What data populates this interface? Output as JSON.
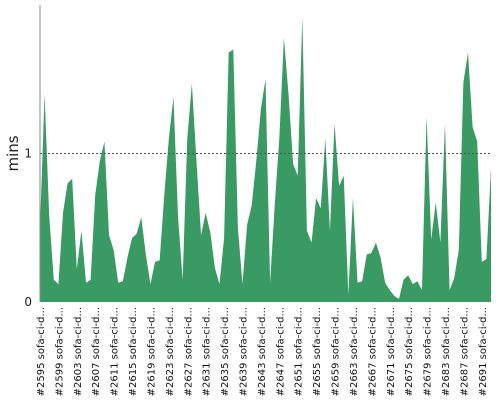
{
  "chart_data": {
    "type": "area",
    "title": "",
    "xlabel": "",
    "ylabel": "mins",
    "ylim": [
      0,
      2
    ],
    "yticks": [
      0,
      1
    ],
    "reference_line": 1,
    "fill_color": "#3a9a63",
    "grid": false,
    "x": [
      2595,
      2596,
      2597,
      2598,
      2599,
      2600,
      2601,
      2602,
      2603,
      2604,
      2605,
      2606,
      2607,
      2608,
      2609,
      2610,
      2611,
      2612,
      2613,
      2614,
      2615,
      2616,
      2617,
      2618,
      2619,
      2620,
      2621,
      2622,
      2623,
      2624,
      2625,
      2626,
      2627,
      2628,
      2629,
      2630,
      2631,
      2632,
      2633,
      2634,
      2635,
      2636,
      2637,
      2638,
      2639,
      2640,
      2641,
      2642,
      2643,
      2644,
      2645,
      2646,
      2647,
      2648,
      2649,
      2650,
      2651,
      2652,
      2653,
      2654,
      2655,
      2656,
      2657,
      2658,
      2659,
      2660,
      2661,
      2662,
      2663,
      2664,
      2665,
      2666,
      2667,
      2668,
      2669,
      2670,
      2671,
      2672,
      2673,
      2674,
      2675,
      2676,
      2677,
      2678,
      2679,
      2680,
      2681,
      2682,
      2683,
      2684,
      2685,
      2686,
      2687,
      2688,
      2689,
      2690,
      2691,
      2692,
      2693
    ],
    "values": [
      0.5,
      1.4,
      0.58,
      0.15,
      0.12,
      0.6,
      0.8,
      0.83,
      0.22,
      0.48,
      0.13,
      0.15,
      0.72,
      0.95,
      1.08,
      0.45,
      0.35,
      0.13,
      0.14,
      0.3,
      0.43,
      0.46,
      0.57,
      0.32,
      0.12,
      0.27,
      0.28,
      0.72,
      1.1,
      1.38,
      0.57,
      0.15,
      1.1,
      1.47,
      0.95,
      0.45,
      0.6,
      0.47,
      0.23,
      0.12,
      0.43,
      1.68,
      1.7,
      0.5,
      0.12,
      0.52,
      0.65,
      0.95,
      1.3,
      1.5,
      0.13,
      0.65,
      1.1,
      1.78,
      1.4,
      0.93,
      0.85,
      1.92,
      0.48,
      0.4,
      0.7,
      0.63,
      1.1,
      0.48,
      1.2,
      0.78,
      0.85,
      0.05,
      0.7,
      0.13,
      0.14,
      0.32,
      0.33,
      0.4,
      0.3,
      0.13,
      0.08,
      0.04,
      0.02,
      0.15,
      0.18,
      0.12,
      0.14,
      0.08,
      1.25,
      0.42,
      0.67,
      0.4,
      1.2,
      0.08,
      0.16,
      0.35,
      1.48,
      1.68,
      1.18,
      1.08,
      0.27,
      0.29,
      0.9
    ],
    "tick_labels": [
      "#2595 sofa-ci-d...",
      "#2599 sofa-ci-d...",
      "#2603 sofa-ci-d...",
      "#2607 sofa-ci-d...",
      "#2611 sofa-ci-d...",
      "#2615 sofa-ci-d...",
      "#2619 sofa-ci-d...",
      "#2623 sofa-ci-d...",
      "#2627 sofa-ci-d...",
      "#2631 sofa-ci-d...",
      "#2635 sofa-ci-d...",
      "#2639 sofa-ci-d...",
      "#2643 sofa-ci-d...",
      "#2647 sofa-ci-d...",
      "#2651 sofa-ci-d...",
      "#2655 sofa-ci-d...",
      "#2659 sofa-ci-d...",
      "#2663 sofa-ci-d...",
      "#2667 sofa-ci-d...",
      "#2671 sofa-ci-d...",
      "#2675 sofa-ci-d...",
      "#2679 sofa-ci-d...",
      "#2683 sofa-ci-d...",
      "#2687 sofa-ci-d...",
      "#2691 sofa-ci-d..."
    ],
    "tick_x": [
      2595,
      2599,
      2603,
      2607,
      2611,
      2615,
      2619,
      2623,
      2627,
      2631,
      2635,
      2639,
      2643,
      2647,
      2651,
      2655,
      2659,
      2663,
      2667,
      2671,
      2675,
      2679,
      2683,
      2687,
      2691
    ]
  }
}
